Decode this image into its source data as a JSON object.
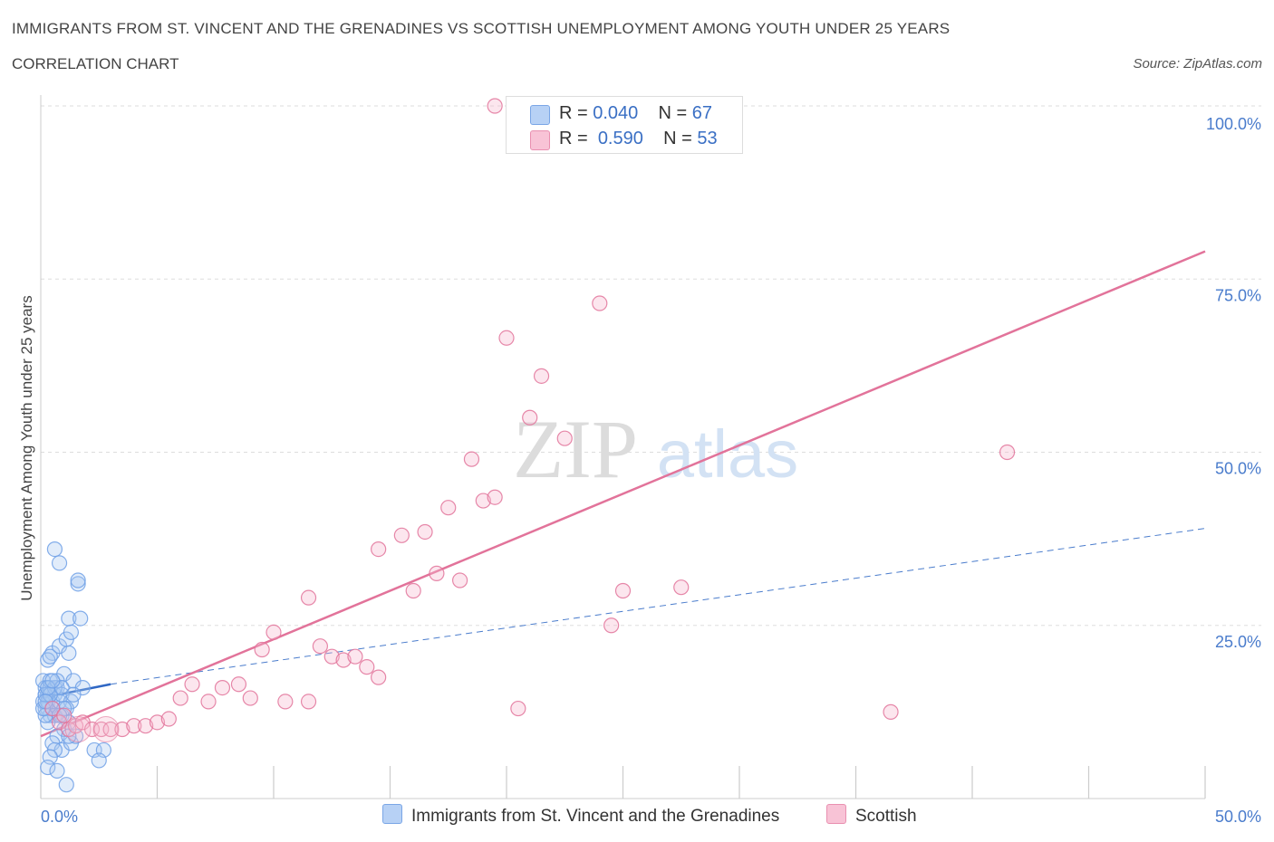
{
  "chart_data": {
    "type": "scatter",
    "title": "IMMIGRANTS FROM ST. VINCENT AND THE GRENADINES VS SCOTTISH UNEMPLOYMENT AMONG YOUTH UNDER 25 YEARS",
    "subtitle": "CORRELATION CHART",
    "source": "Source: ZipAtlas.com",
    "xlabel": "",
    "ylabel": "Unemployment Among Youth under 25 years",
    "xlim": [
      0,
      50
    ],
    "ylim": [
      0,
      100
    ],
    "x_tick_labels": {
      "left": "0.0%",
      "right": "50.0%"
    },
    "y_tick_labels": [
      "100.0%",
      "75.0%",
      "50.0%",
      "25.0%"
    ],
    "y_tick_values": [
      100,
      75,
      50,
      25
    ],
    "grid": true,
    "watermark": "ZIPatlas",
    "legend": {
      "rows": [
        {
          "r_label": "R =",
          "r_value": "0.040",
          "n_label": "N =",
          "n_value": "67"
        },
        {
          "r_label": "R =",
          "r_value": "0.590",
          "n_label": "N =",
          "n_value": "53"
        }
      ]
    },
    "series": [
      {
        "name": "Immigrants from St. Vincent and the Grenadines",
        "color": "#6fa0e6",
        "fill": "#a9c8f2",
        "trend": {
          "x": [
            0,
            3.0
          ],
          "y": [
            14.5,
            16.5
          ]
        },
        "trend_ext": {
          "x": [
            3.0,
            50
          ],
          "y": [
            16.5,
            39
          ]
        },
        "points": [
          [
            0.1,
            14
          ],
          [
            0.2,
            15
          ],
          [
            0.3,
            13
          ],
          [
            0.2,
            16
          ],
          [
            0.4,
            12
          ],
          [
            0.1,
            17
          ],
          [
            0.3,
            15
          ],
          [
            0.5,
            14
          ],
          [
            0.2,
            13
          ],
          [
            0.4,
            16
          ],
          [
            0.6,
            15
          ],
          [
            0.3,
            14
          ],
          [
            0.5,
            13
          ],
          [
            0.7,
            16
          ],
          [
            0.2,
            15
          ],
          [
            0.8,
            14
          ],
          [
            0.4,
            17
          ],
          [
            0.6,
            12
          ],
          [
            0.3,
            11
          ],
          [
            0.9,
            15
          ],
          [
            0.5,
            21
          ],
          [
            0.3,
            20
          ],
          [
            0.4,
            20.5
          ],
          [
            0.8,
            22
          ],
          [
            1.2,
            21
          ],
          [
            1.1,
            23
          ],
          [
            1.3,
            24
          ],
          [
            1.2,
            26
          ],
          [
            0.6,
            36
          ],
          [
            0.8,
            34
          ],
          [
            1.6,
            31
          ],
          [
            1.6,
            31.5
          ],
          [
            1.7,
            26
          ],
          [
            1.0,
            18
          ],
          [
            1.4,
            17
          ],
          [
            1.8,
            16
          ],
          [
            1.3,
            14
          ],
          [
            1.1,
            13
          ],
          [
            0.9,
            12
          ],
          [
            1.2,
            11
          ],
          [
            1.0,
            10
          ],
          [
            0.7,
            9
          ],
          [
            0.5,
            8
          ],
          [
            0.9,
            7
          ],
          [
            1.3,
            8
          ],
          [
            0.6,
            7
          ],
          [
            0.4,
            6
          ],
          [
            0.3,
            4.5
          ],
          [
            0.7,
            4
          ],
          [
            1.1,
            2
          ],
          [
            2.3,
            7
          ],
          [
            2.7,
            7
          ],
          [
            2.5,
            5.5
          ],
          [
            1.5,
            9
          ],
          [
            0.2,
            12
          ],
          [
            0.1,
            13
          ],
          [
            0.6,
            16
          ],
          [
            0.4,
            15
          ],
          [
            0.7,
            17
          ],
          [
            0.9,
            16
          ],
          [
            1.4,
            15
          ],
          [
            1.0,
            13
          ],
          [
            0.3,
            16
          ],
          [
            0.5,
            17
          ],
          [
            0.8,
            12
          ],
          [
            1.2,
            9
          ],
          [
            0.2,
            14
          ]
        ]
      },
      {
        "name": "Scottish",
        "color": "#e2739a",
        "fill": "#f6b8ce",
        "trend": {
          "x": [
            0,
            50
          ],
          "y": [
            9,
            79
          ]
        },
        "points": [
          [
            0.5,
            13
          ],
          [
            0.8,
            11
          ],
          [
            1.0,
            12
          ],
          [
            1.2,
            10
          ],
          [
            1.5,
            10.5
          ],
          [
            1.8,
            11
          ],
          [
            2.2,
            10
          ],
          [
            2.6,
            10
          ],
          [
            3.0,
            10
          ],
          [
            3.5,
            10
          ],
          [
            4.0,
            10.5
          ],
          [
            4.5,
            10.5
          ],
          [
            5.0,
            11
          ],
          [
            5.5,
            11.5
          ],
          [
            6.0,
            14.5
          ],
          [
            6.5,
            16.5
          ],
          [
            7.2,
            14
          ],
          [
            7.8,
            16
          ],
          [
            8.5,
            16.5
          ],
          [
            9.0,
            14.5
          ],
          [
            9.5,
            21.5
          ],
          [
            10.0,
            24
          ],
          [
            10.5,
            14
          ],
          [
            11.5,
            14
          ],
          [
            11.5,
            29
          ],
          [
            12.0,
            22
          ],
          [
            12.5,
            20.5
          ],
          [
            13.0,
            20
          ],
          [
            13.5,
            20.5
          ],
          [
            14.0,
            19
          ],
          [
            14.5,
            17.5
          ],
          [
            14.5,
            36
          ],
          [
            15.5,
            38
          ],
          [
            16.0,
            30
          ],
          [
            16.5,
            38.5
          ],
          [
            17.0,
            32.5
          ],
          [
            17.5,
            42
          ],
          [
            18.0,
            31.5
          ],
          [
            18.5,
            49
          ],
          [
            19.0,
            43
          ],
          [
            19.5,
            43.5
          ],
          [
            19.5,
            100
          ],
          [
            20.0,
            66.5
          ],
          [
            20.5,
            13
          ],
          [
            21.0,
            55
          ],
          [
            21.5,
            61
          ],
          [
            22.5,
            52
          ],
          [
            24.0,
            71.5
          ],
          [
            24.5,
            25
          ],
          [
            25.0,
            30
          ],
          [
            27.5,
            30.5
          ],
          [
            36.5,
            12.5
          ],
          [
            41.5,
            50
          ]
        ]
      }
    ]
  }
}
